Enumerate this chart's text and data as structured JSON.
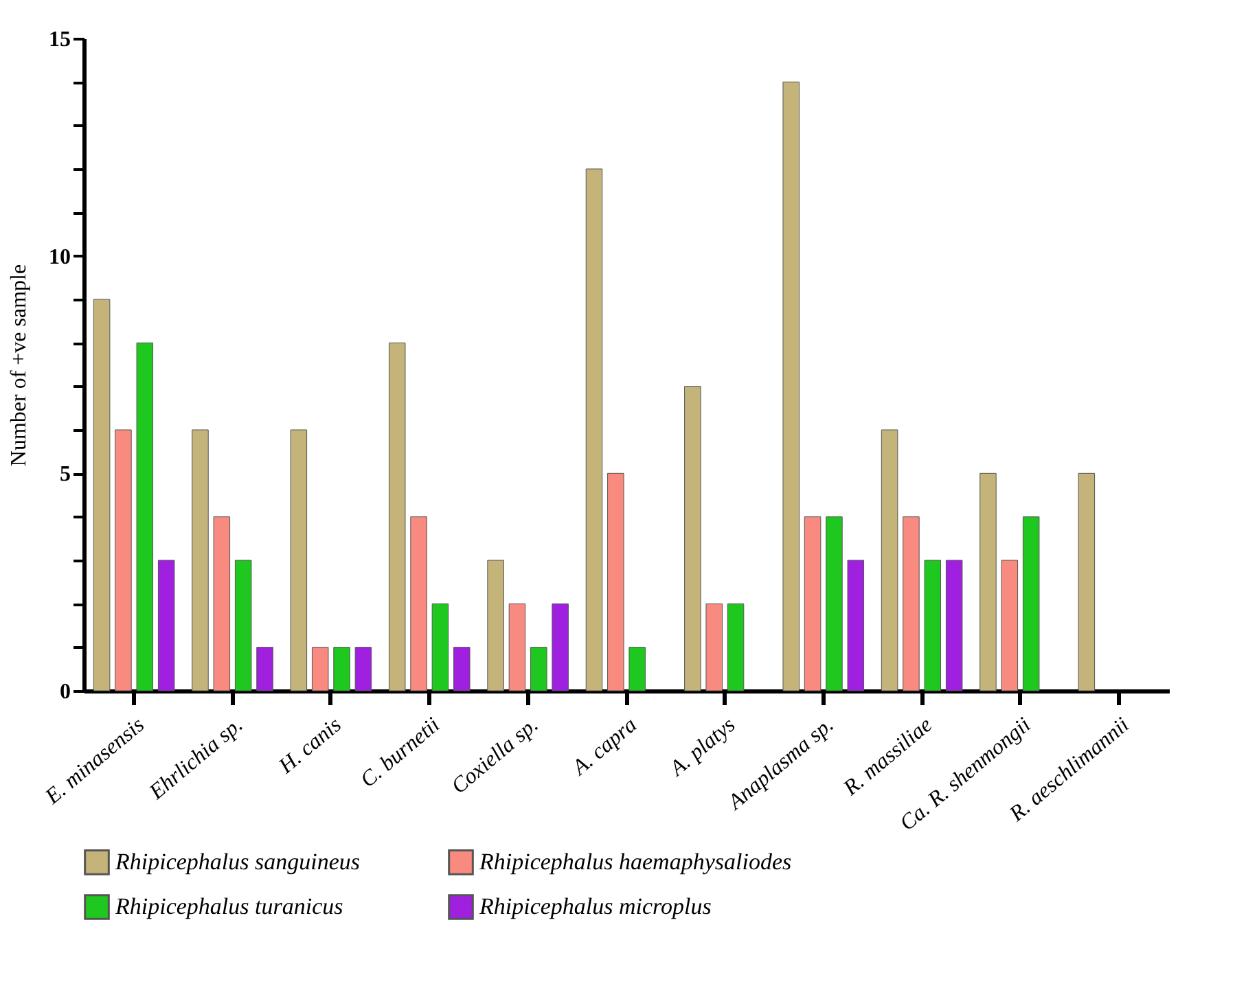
{
  "chart_data": {
    "type": "bar",
    "ylabel": "Number of +ve sample",
    "categories": [
      "E. minasensis",
      "Ehrlichia sp.",
      "H. canis",
      "C. burnetii",
      "Coxiella sp.",
      "A. capra",
      "A. platys",
      "Anaplasma sp.",
      "R. massiliae",
      "Ca. R. shenmongii",
      "R. aeschlimannii"
    ],
    "series": [
      {
        "name": "Rhipicephalus sanguineus",
        "color": "#c4b47a",
        "values": [
          9,
          6,
          6,
          8,
          3,
          12,
          7,
          14,
          6,
          5,
          5
        ]
      },
      {
        "name": "Rhipicephalus haemaphysaliodes",
        "color": "#f98a80",
        "values": [
          6,
          4,
          1,
          4,
          2,
          5,
          2,
          4,
          4,
          3,
          null
        ]
      },
      {
        "name": "Rhipicephalus turanicus",
        "color": "#1ec81e",
        "values": [
          8,
          3,
          1,
          2,
          1,
          1,
          2,
          4,
          3,
          4,
          null
        ]
      },
      {
        "name": "Rhipicephalus  microplus",
        "color": "#a020e0",
        "values": [
          3,
          1,
          1,
          1,
          2,
          null,
          null,
          3,
          3,
          null,
          null
        ]
      }
    ],
    "ylim": [
      0,
      15
    ],
    "yticks": [
      0,
      {
        "value": 1,
        "label": null
      },
      {
        "value": 2,
        "label": null
      },
      {
        "value": 3,
        "label": null
      },
      {
        "value": 4,
        "label": null
      },
      5,
      {
        "value": 6,
        "label": null
      },
      {
        "value": 7,
        "label": null
      },
      {
        "value": 8,
        "label": null
      },
      {
        "value": 9,
        "label": null
      },
      10,
      {
        "value": 11,
        "label": null
      },
      {
        "value": 12,
        "label": null
      },
      {
        "value": 13,
        "label": null
      },
      {
        "value": 14,
        "label": null
      },
      15
    ],
    "grid": false,
    "legend": "bottom"
  }
}
